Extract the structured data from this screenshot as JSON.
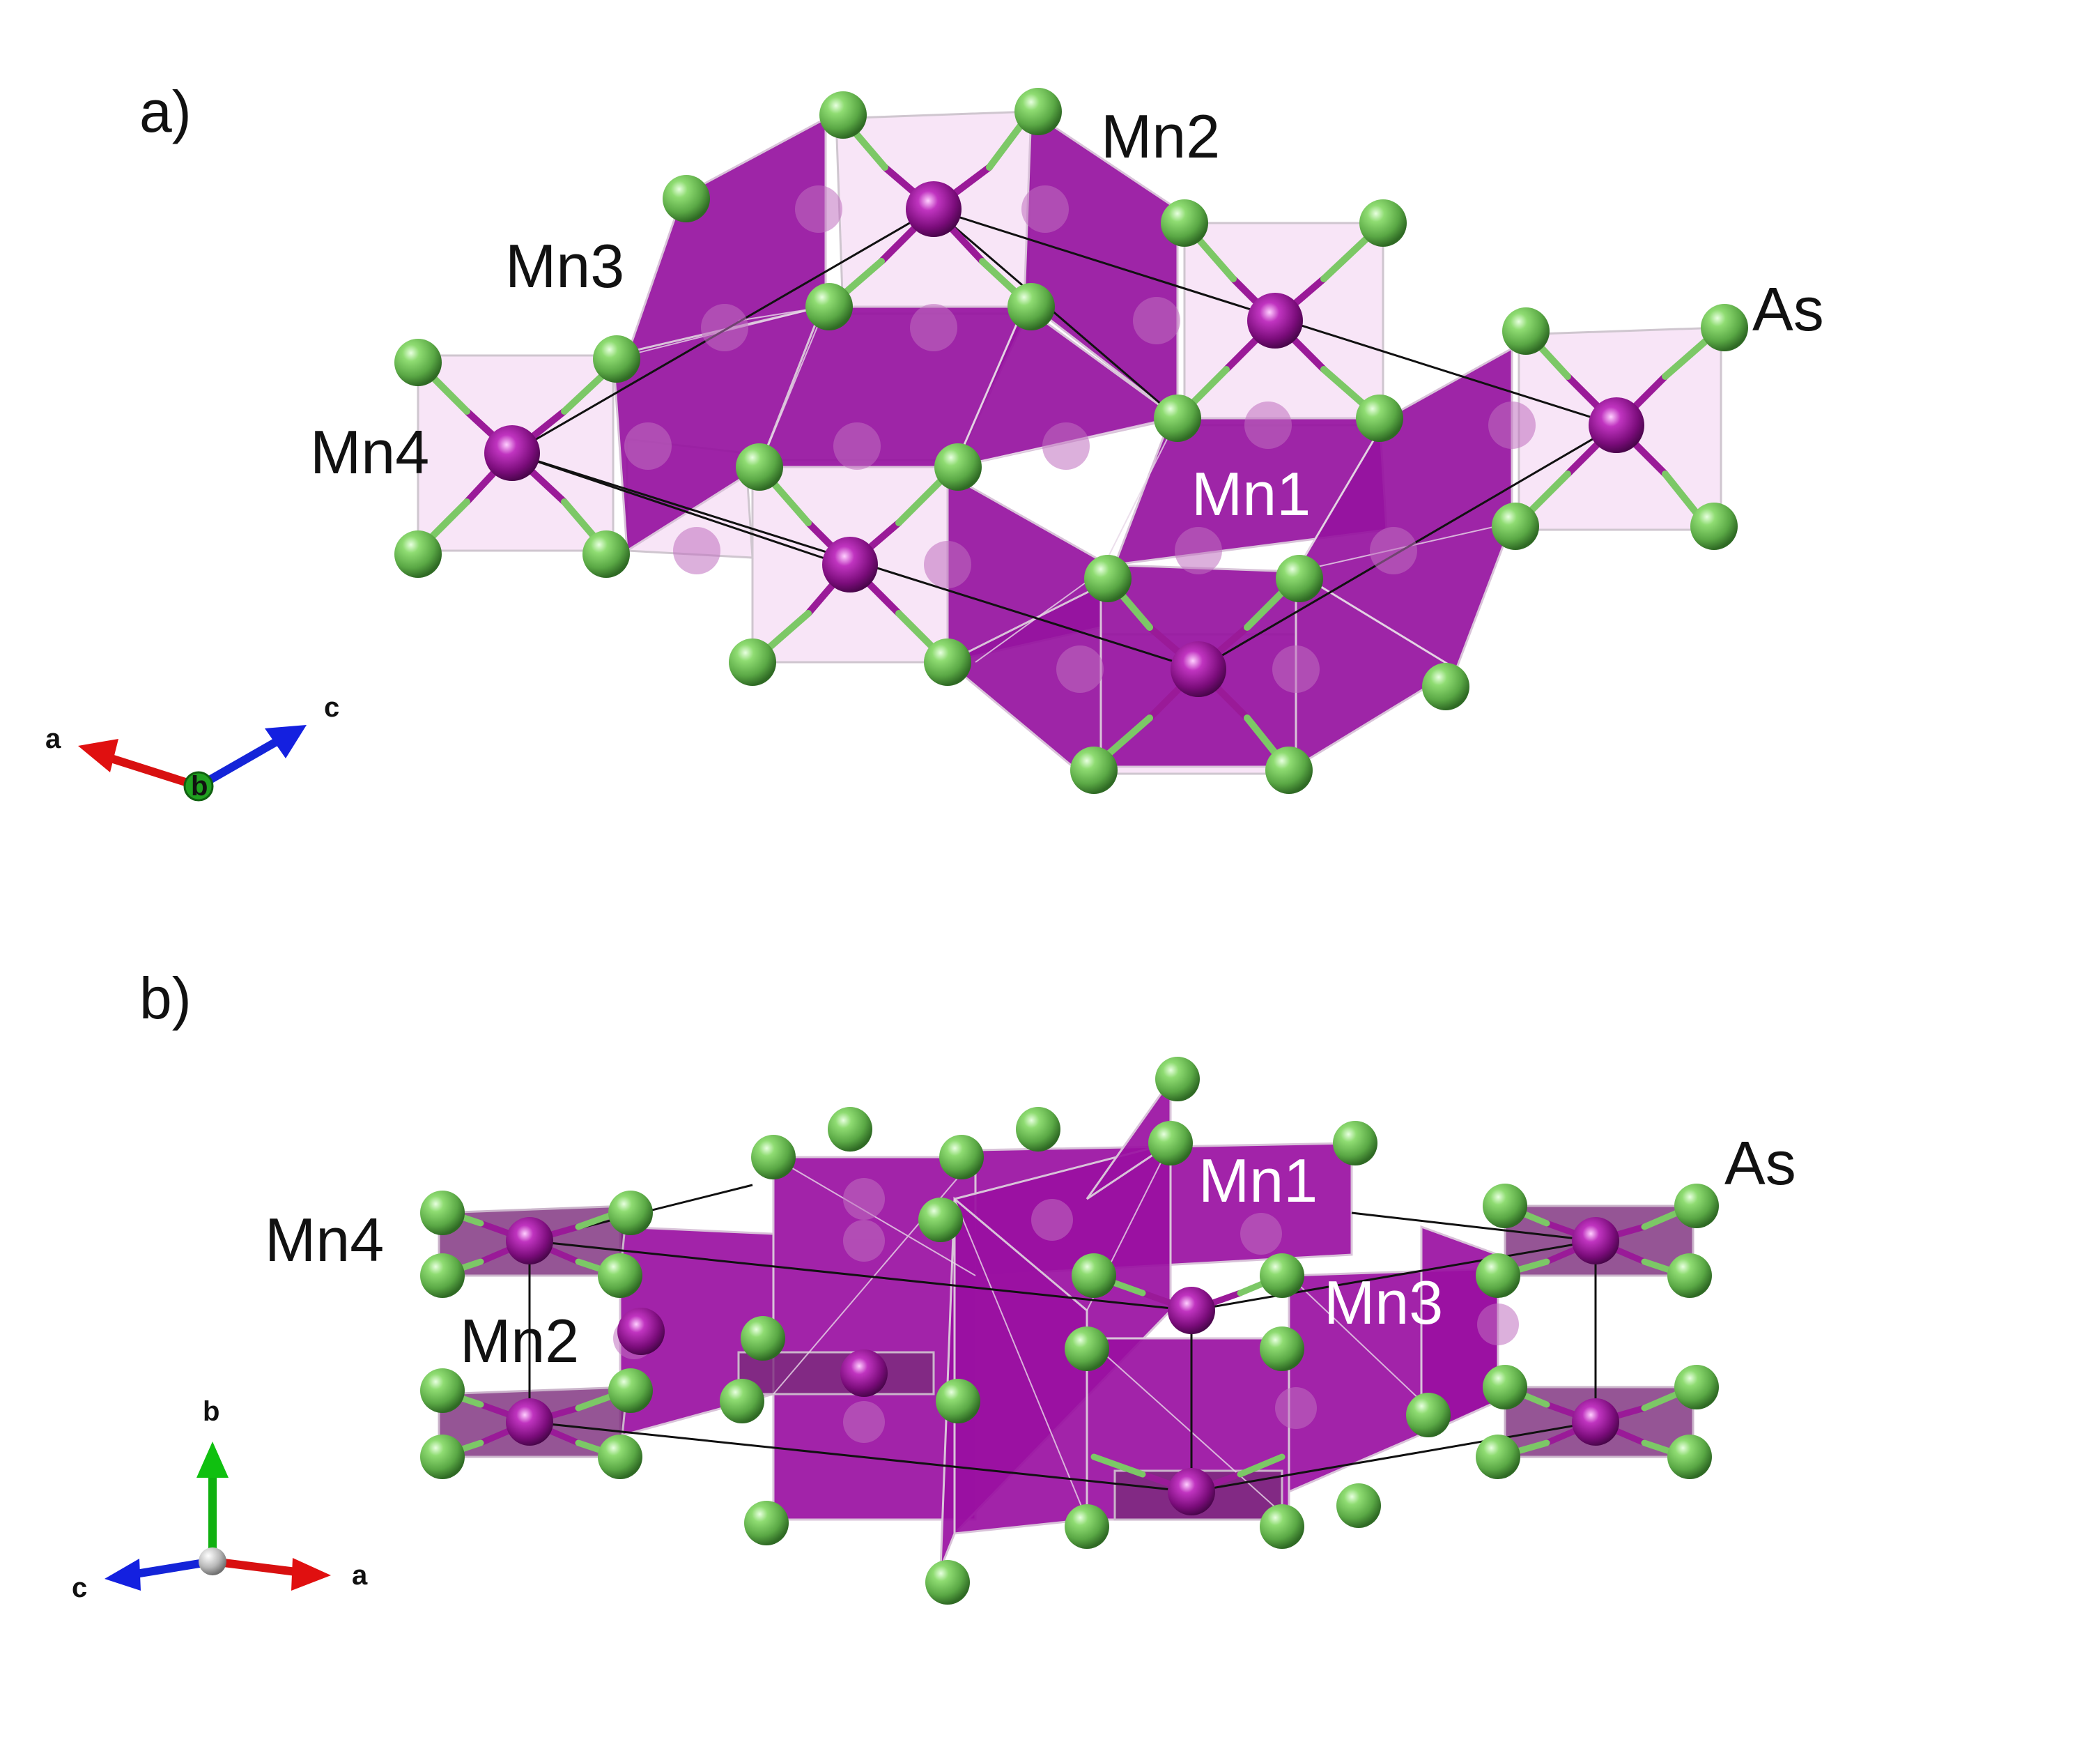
{
  "panel_a": {
    "tag": "a)",
    "labels": {
      "mn1": "Mn1",
      "mn2": "Mn2",
      "mn3": "Mn3",
      "mn4": "Mn4",
      "as": "As"
    },
    "axes": {
      "x": "a",
      "y": "b",
      "z": "c"
    }
  },
  "panel_b": {
    "tag": "b)",
    "labels": {
      "mn1": "Mn1",
      "mn2": "Mn2",
      "mn3": "Mn3",
      "mn4": "Mn4",
      "as": "As"
    },
    "axes": {
      "x": "a",
      "y": "b",
      "z": "c"
    }
  },
  "colors": {
    "mn_atom": "#8a1088",
    "mn_polyhedron": "#9b14a0",
    "as_atom": "#6fc35a",
    "light_polyhedron": "#f6d8f4",
    "axis_a": "#e01010",
    "axis_b": "#10b010",
    "axis_c": "#1020e0"
  }
}
